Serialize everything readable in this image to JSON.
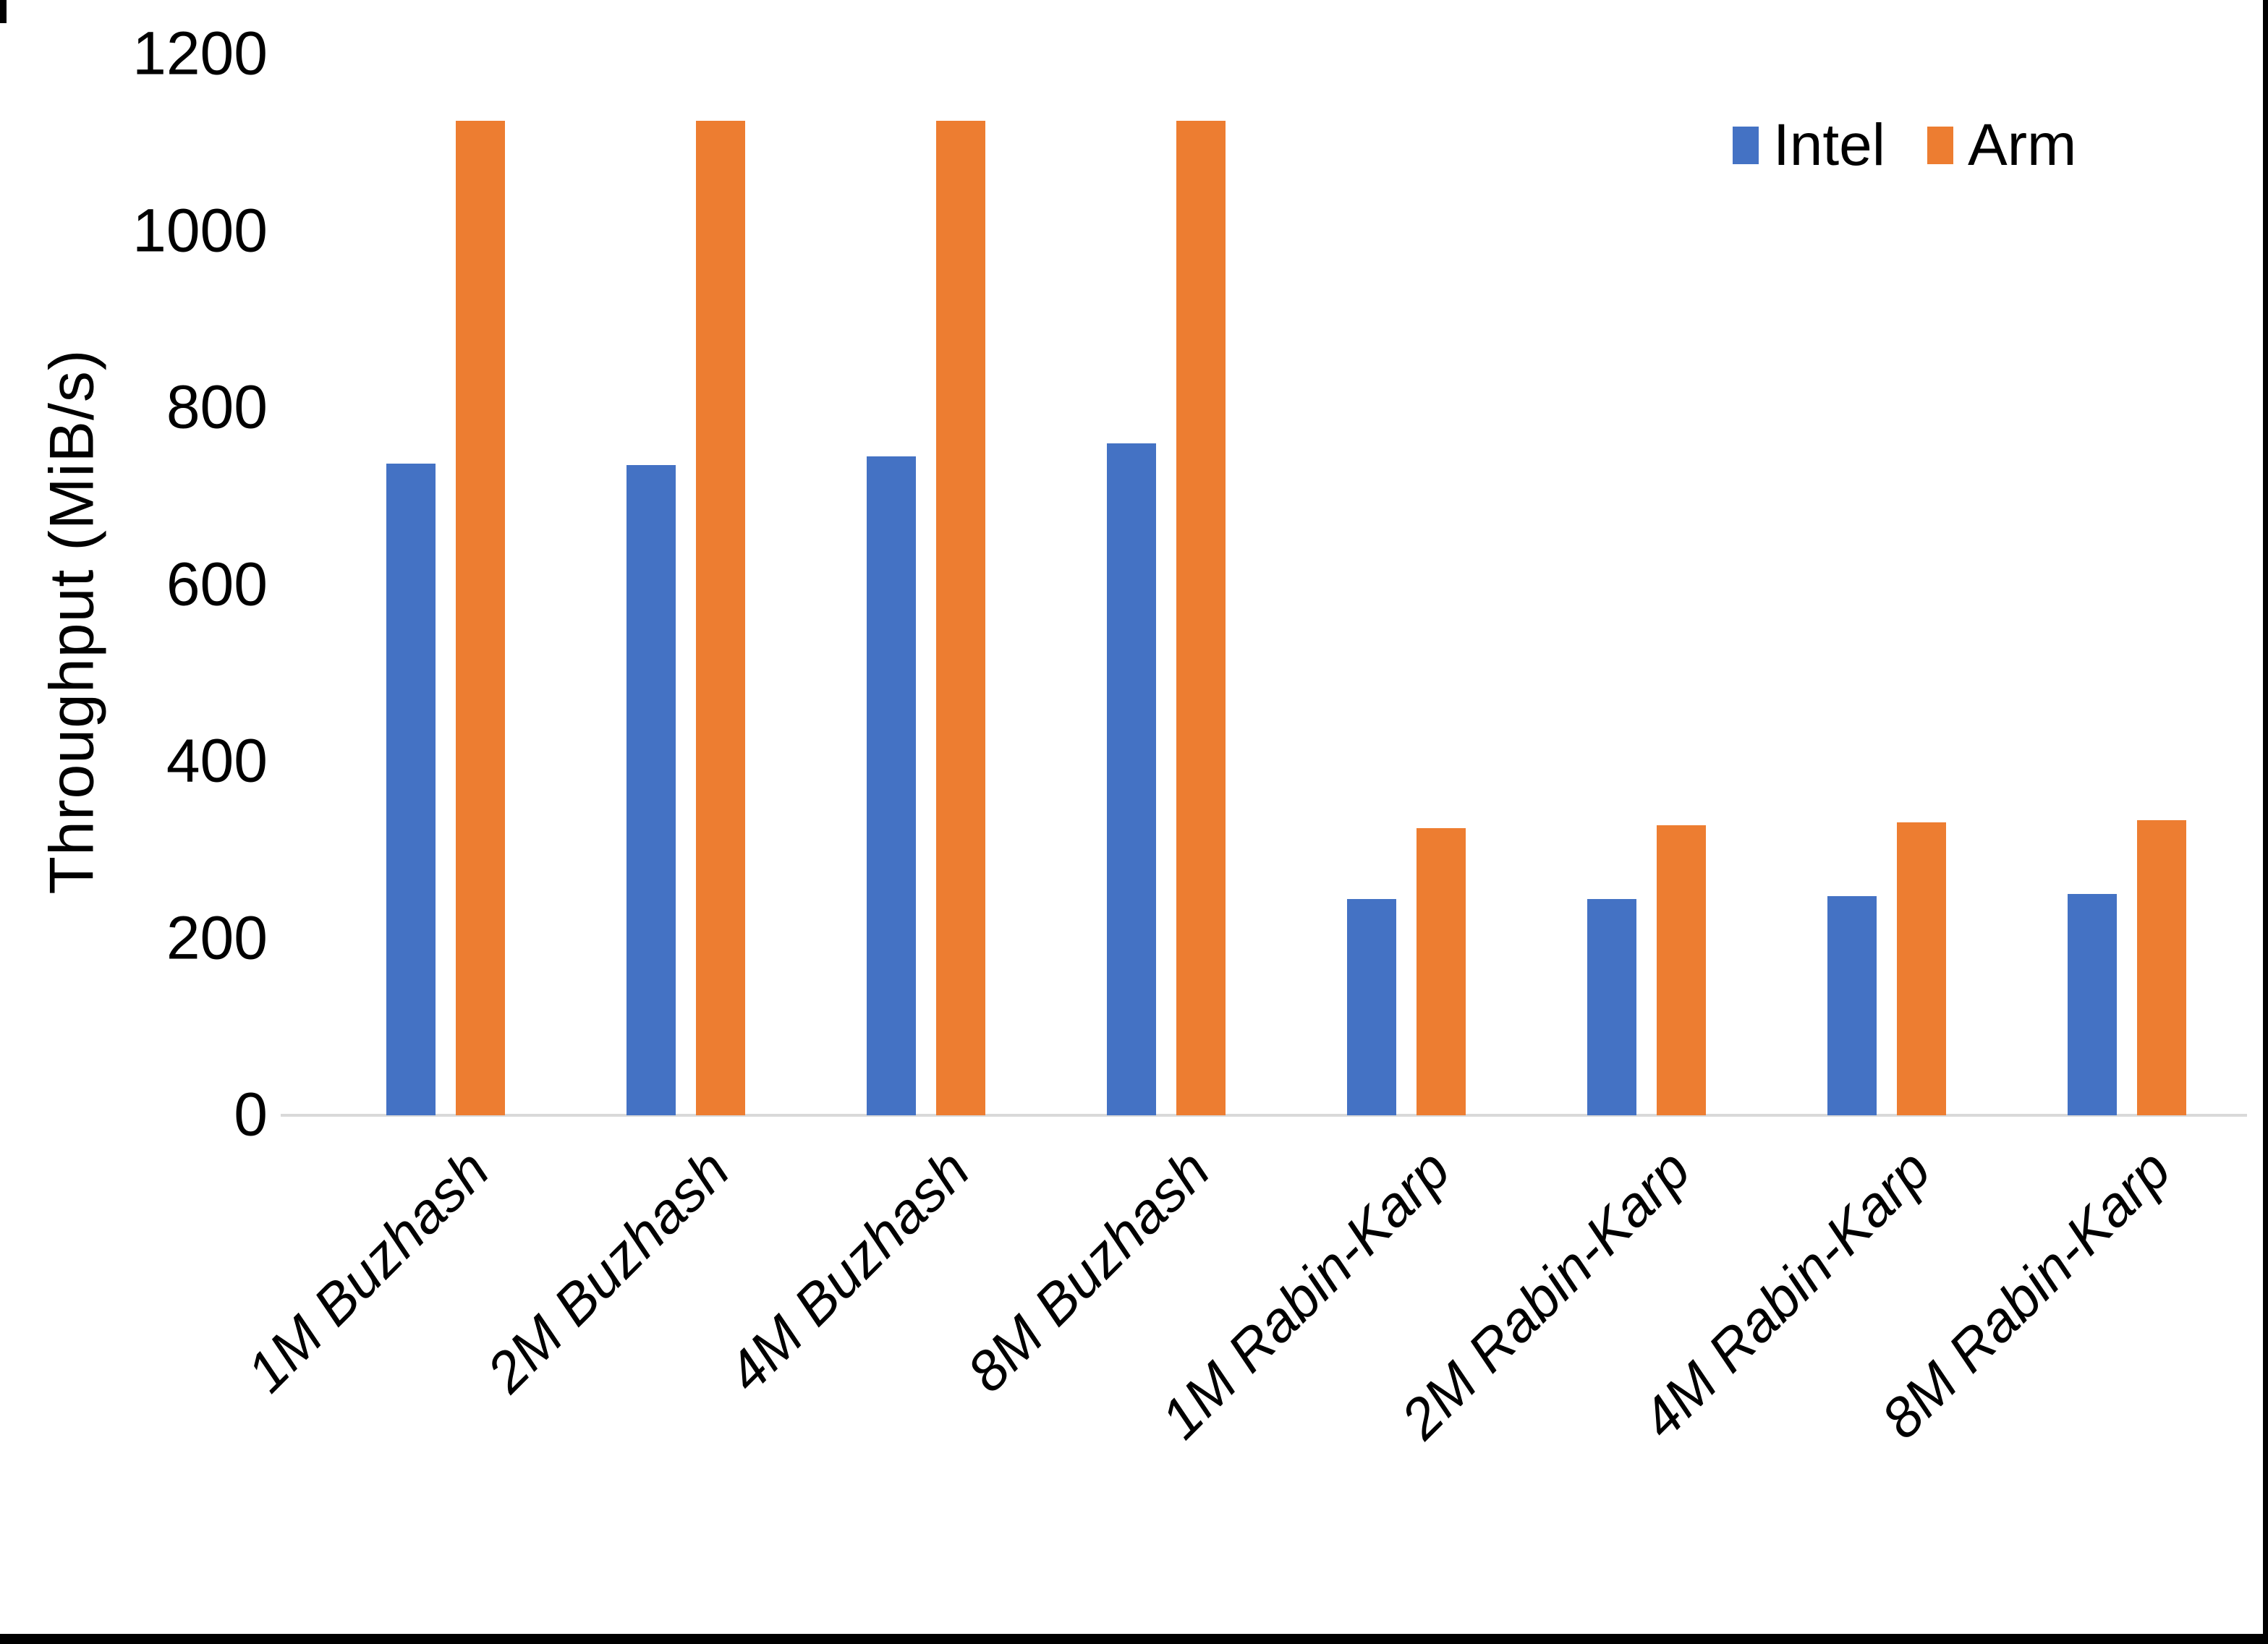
{
  "chart_data": {
    "type": "bar",
    "title": "",
    "ylabel": "Throughput (MiB/s)",
    "xlabel": "",
    "ylim": [
      0,
      1200
    ],
    "ytick_step": 200,
    "grid": false,
    "legend_position": "top-right",
    "categories": [
      "1M Buzhash",
      "2M Buzhash",
      "4M Buzhash",
      "8M Buzhash",
      "1M Rabin-Karp",
      "2M Rabin-Karp",
      "4M Rabin-Karp",
      "8M Rabin-Karp"
    ],
    "series": [
      {
        "name": "Intel",
        "color": "#4472C4",
        "values": [
          737,
          735,
          745,
          760,
          245,
          245,
          248,
          250
        ]
      },
      {
        "name": "Arm",
        "color": "#ED7D31",
        "values": [
          1125,
          1125,
          1125,
          1125,
          325,
          328,
          331,
          334
        ]
      }
    ],
    "axis_line_color": "#D9D9D9",
    "text_color": "#000000",
    "background_color": "#FFFFFF"
  }
}
